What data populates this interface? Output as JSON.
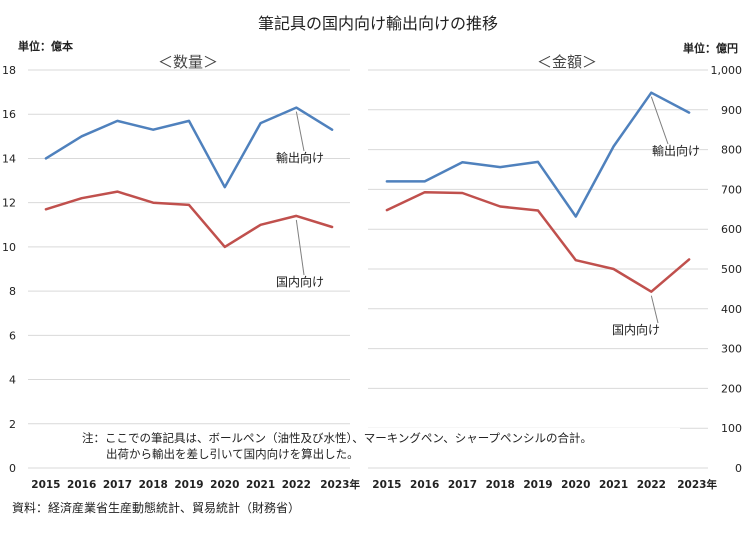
{
  "title": "筆記具の国内向け輸出向けの推移",
  "note_lines": [
    "注：ここでの筆記具は、ボールペン（油性及び水性）、マーキングペン、シャープペンシルの合計。",
    "出荷から輸出を差し引いて国内向けを算出した。"
  ],
  "source": "資料：経済産業省生産動態統計、貿易統計（財務省）",
  "colors": {
    "export": "#4f81bd",
    "domestic": "#c0504d",
    "grid": "#d9d9d9",
    "text": "#222222"
  },
  "chart_data": [
    {
      "type": "line",
      "subtitle": "＜数量＞",
      "unit_label": "単位：億本",
      "categories": [
        "2015",
        "2016",
        "2017",
        "2018",
        "2019",
        "2020",
        "2021",
        "2022",
        "2023年"
      ],
      "ylim": [
        0,
        18
      ],
      "yticks": [
        0,
        2,
        4,
        6,
        8,
        10,
        12,
        14,
        16,
        18
      ],
      "ytick_labels": [
        "0",
        "2",
        "4",
        "6",
        "8",
        "10",
        "12",
        "14",
        "16",
        "18"
      ],
      "grid": true,
      "series": [
        {
          "name": "輸出向け",
          "key": "export",
          "values": [
            14.0,
            15.0,
            15.7,
            15.3,
            15.7,
            12.7,
            15.6,
            16.3,
            15.3
          ]
        },
        {
          "name": "国内向け",
          "key": "domestic",
          "values": [
            11.7,
            12.2,
            12.5,
            12.0,
            11.9,
            10.0,
            11.0,
            11.4,
            10.9
          ]
        }
      ]
    },
    {
      "type": "line",
      "subtitle": "＜金額＞",
      "unit_label": "単位：億円",
      "categories": [
        "2015",
        "2016",
        "2017",
        "2018",
        "2019",
        "2020",
        "2021",
        "2022",
        "2023年"
      ],
      "ylim": [
        0,
        1000
      ],
      "yticks": [
        0,
        100,
        200,
        300,
        400,
        500,
        600,
        700,
        800,
        900,
        1000
      ],
      "ytick_labels": [
        "0",
        "100",
        "200",
        "300",
        "400",
        "500",
        "600",
        "700",
        "800",
        "900",
        "1,000"
      ],
      "grid": true,
      "series": [
        {
          "name": "輸出向け",
          "key": "export",
          "values": [
            720,
            720,
            768,
            756,
            769,
            632,
            808,
            943,
            893
          ]
        },
        {
          "name": "国内向け",
          "key": "domestic",
          "values": [
            648,
            693,
            691,
            657,
            647,
            522,
            500,
            443,
            524
          ]
        }
      ]
    }
  ]
}
